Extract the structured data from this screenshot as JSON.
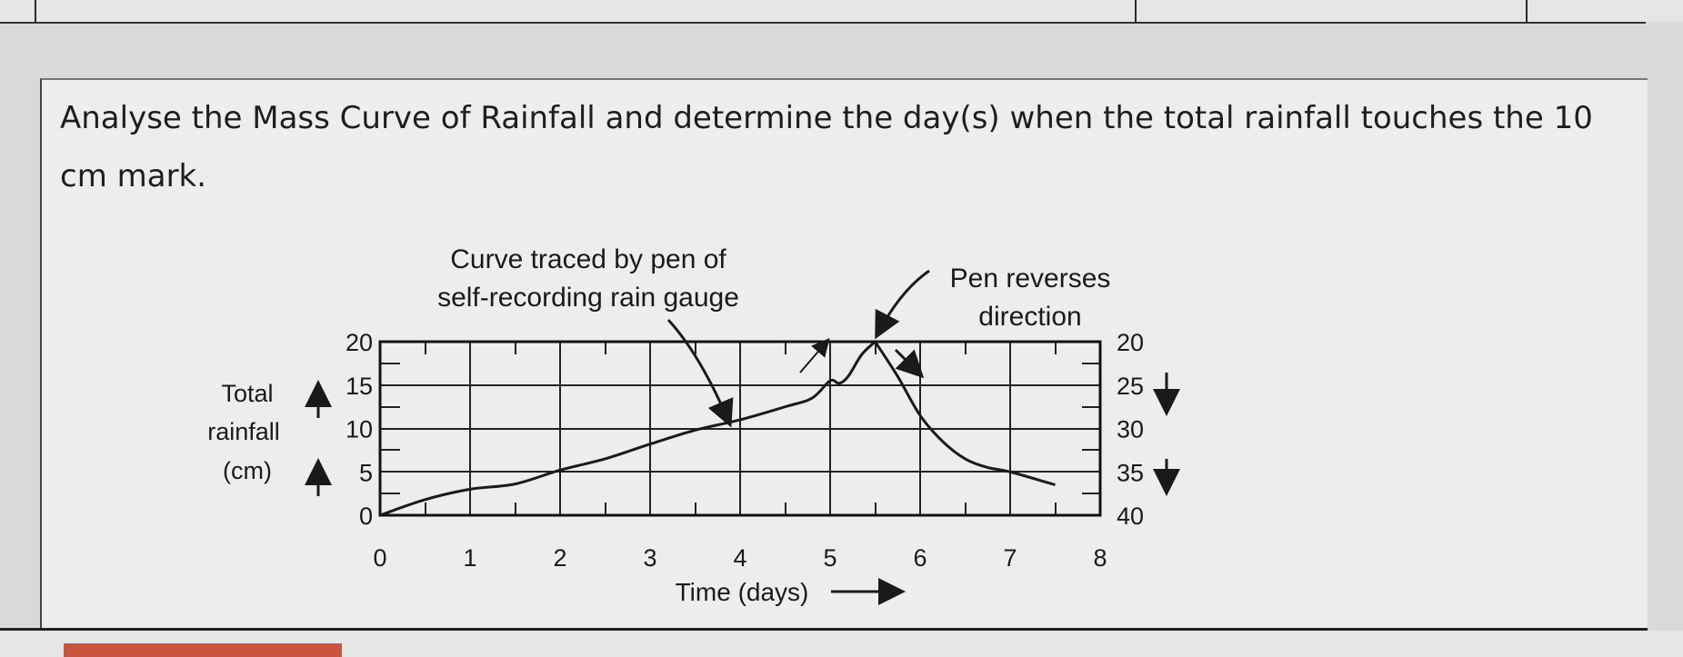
{
  "question": "Analyse the Mass Curve of Rainfall and determine the day(s) when the total rainfall touches the 10 cm mark.",
  "chart_data": {
    "type": "line",
    "title": "",
    "xlabel": "Time (days)",
    "ylabel_lines": [
      "Total",
      "rainfall",
      "(cm)"
    ],
    "x_ticks": [
      "0",
      "1",
      "2",
      "3",
      "4",
      "5",
      "6",
      "7",
      "8"
    ],
    "y_left_ticks": [
      "0",
      "5",
      "10",
      "15",
      "20"
    ],
    "y_right_ticks": [
      "20",
      "25",
      "30",
      "35",
      "40"
    ],
    "xlim": [
      0,
      8
    ],
    "ylim": [
      0,
      20
    ],
    "grid": true,
    "annotations": {
      "curve_line1": "Curve traced by pen of",
      "curve_line2": "self-recording rain gauge",
      "reverse_line1": "Pen reverses",
      "reverse_line2": "direction"
    },
    "series": [
      {
        "x": [
          0,
          0.5,
          1,
          1.5,
          2,
          2.5,
          3,
          3.5,
          4,
          4.5,
          4.8,
          5.0,
          5.1,
          5.2,
          5.35,
          5.5
        ],
        "y": [
          0,
          1.8,
          3.0,
          3.6,
          5.2,
          6.5,
          8.2,
          9.8,
          11.0,
          12.5,
          13.5,
          15.5,
          15.2,
          16.0,
          18.5,
          20
        ]
      },
      {
        "x": [
          5.5,
          5.75,
          6.0,
          6.25,
          6.5,
          6.75,
          7.0,
          7.5
        ],
        "y_right": [
          20,
          24,
          28.5,
          31.5,
          33.5,
          34.5,
          35,
          36.5
        ]
      }
    ]
  }
}
